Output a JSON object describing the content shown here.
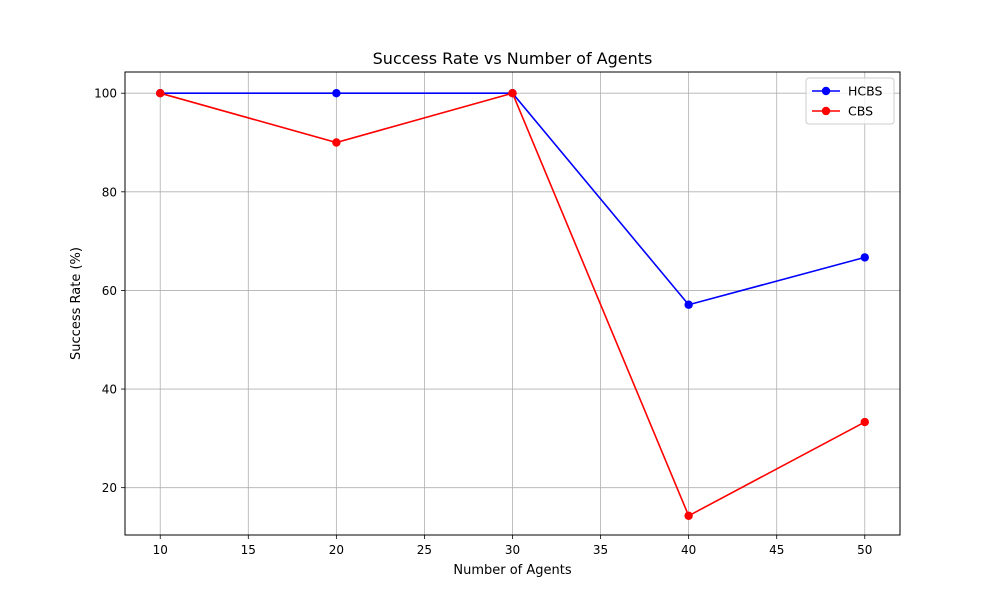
{
  "chart_data": {
    "type": "line",
    "title": "Success Rate vs Number of Agents",
    "xlabel": "Number of Agents",
    "ylabel": "Success Rate (%)",
    "x": [
      10,
      20,
      30,
      40,
      50
    ],
    "xlim": [
      8,
      52
    ],
    "ylim": [
      10.4,
      104.3
    ],
    "xticks": [
      10,
      15,
      20,
      25,
      30,
      35,
      40,
      45,
      50
    ],
    "yticks": [
      20,
      40,
      60,
      80,
      100
    ],
    "grid": true,
    "legend_position": "top-right",
    "series": [
      {
        "name": "HCBS",
        "color": "#0000ff",
        "marker": "circle",
        "values": [
          100,
          100,
          100,
          57.1,
          66.7
        ]
      },
      {
        "name": "CBS",
        "color": "#ff0000",
        "marker": "circle",
        "values": [
          100,
          90,
          100,
          14.3,
          33.3
        ]
      }
    ]
  }
}
